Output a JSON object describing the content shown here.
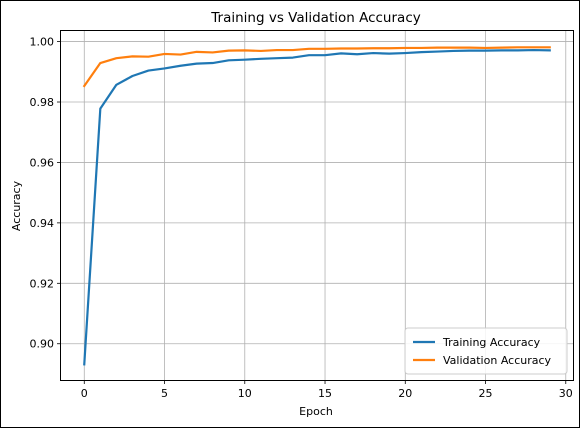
{
  "chart_data": {
    "type": "line",
    "title": "Training vs Validation Accuracy",
    "xlabel": "Epoch",
    "ylabel": "Accuracy",
    "xlim": [
      -1.45,
      30.45
    ],
    "ylim": [
      0.888,
      1.0035
    ],
    "xticks": [
      0,
      5,
      10,
      15,
      20,
      25,
      30
    ],
    "yticks": [
      0.9,
      0.92,
      0.94,
      0.96,
      0.98,
      1.0
    ],
    "ytick_labels": [
      "0.90",
      "0.92",
      "0.94",
      "0.96",
      "0.98",
      "1.00"
    ],
    "grid": true,
    "legend_position": "lower-right",
    "x": [
      0,
      1,
      2,
      3,
      4,
      5,
      6,
      7,
      8,
      9,
      10,
      11,
      12,
      13,
      14,
      15,
      16,
      17,
      18,
      19,
      20,
      21,
      22,
      23,
      24,
      25,
      26,
      27,
      28,
      29
    ],
    "series": [
      {
        "name": "Training Accuracy",
        "color": "#1f77b4",
        "values": [
          0.8932,
          0.9778,
          0.9857,
          0.9886,
          0.9904,
          0.9911,
          0.992,
          0.9927,
          0.9929,
          0.9938,
          0.994,
          0.9943,
          0.9945,
          0.9947,
          0.9955,
          0.9955,
          0.9961,
          0.9958,
          0.9962,
          0.996,
          0.9962,
          0.9965,
          0.9967,
          0.9969,
          0.997,
          0.997,
          0.9971,
          0.9971,
          0.9972,
          0.9971
        ]
      },
      {
        "name": "Validation Accuracy",
        "color": "#ff7f0e",
        "values": [
          0.9853,
          0.9929,
          0.9945,
          0.9951,
          0.995,
          0.9959,
          0.9957,
          0.9966,
          0.9964,
          0.997,
          0.9971,
          0.9969,
          0.9972,
          0.9972,
          0.9976,
          0.9976,
          0.9977,
          0.9977,
          0.9978,
          0.9978,
          0.9979,
          0.9979,
          0.998,
          0.998,
          0.998,
          0.9979,
          0.998,
          0.9981,
          0.9981,
          0.9981
        ]
      }
    ]
  }
}
